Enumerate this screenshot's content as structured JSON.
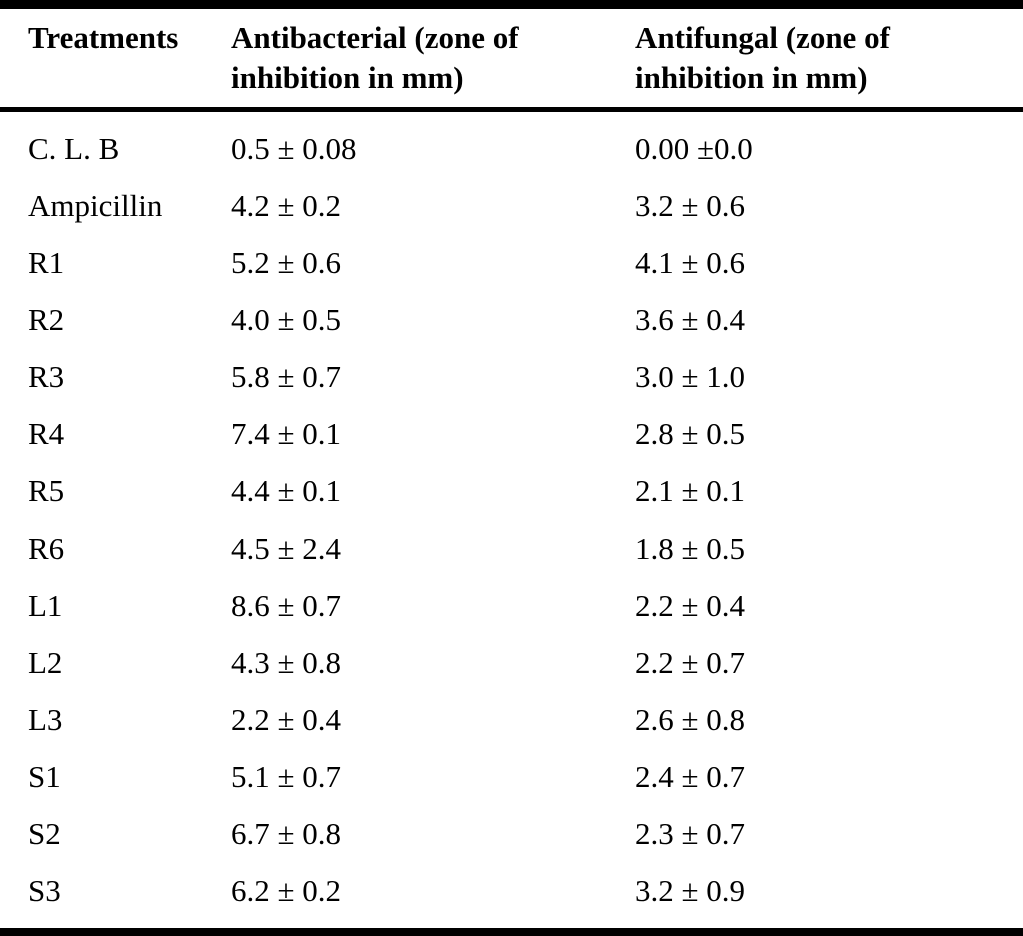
{
  "page": {
    "background_color": "#ffffff",
    "text_color": "#000000",
    "kind": "journal-article-table"
  },
  "table": {
    "headers": [
      "Treatments",
      "Antibacterial (zone of inhibition in mm)",
      "Antifungal (zone of inhibition in mm)"
    ],
    "rows": [
      {
        "treatment": "C. L. B",
        "antibacterial": "0.5 ± 0.08",
        "antifungal": "0.00 ±0.0"
      },
      {
        "treatment": "Ampicillin",
        "antibacterial": "4.2 ± 0.2",
        "antifungal": "3.2 ± 0.6"
      },
      {
        "treatment": "R1",
        "antibacterial": "5.2 ± 0.6",
        "antifungal": "4.1 ± 0.6"
      },
      {
        "treatment": "R2",
        "antibacterial": "4.0 ± 0.5",
        "antifungal": "3.6 ± 0.4"
      },
      {
        "treatment": "R3",
        "antibacterial": "5.8 ± 0.7",
        "antifungal": "3.0 ± 1.0"
      },
      {
        "treatment": "R4",
        "antibacterial": "7.4 ± 0.1",
        "antifungal": "2.8 ± 0.5"
      },
      {
        "treatment": "R5",
        "antibacterial": "4.4 ± 0.1",
        "antifungal": "2.1 ± 0.1"
      },
      {
        "treatment": "R6",
        "antibacterial": "4.5 ± 2.4",
        "antifungal": "1.8 ± 0.5"
      },
      {
        "treatment": "L1",
        "antibacterial": "8.6 ± 0.7",
        "antifungal": "2.2 ± 0.4"
      },
      {
        "treatment": "L2",
        "antibacterial": "4.3 ± 0.8",
        "antifungal": "2.2 ± 0.7"
      },
      {
        "treatment": "L3",
        "antibacterial": "2.2 ± 0.4",
        "antifungal": "2.6 ± 0.8"
      },
      {
        "treatment": "S1",
        "antibacterial": "5.1 ± 0.7",
        "antifungal": "2.4 ± 0.7"
      },
      {
        "treatment": "S2",
        "antibacterial": "6.7 ± 0.8",
        "antifungal": "2.3 ± 0.7"
      },
      {
        "treatment": "S3",
        "antibacterial": "6.2 ± 0.2",
        "antifungal": "3.2 ± 0.9"
      }
    ]
  }
}
